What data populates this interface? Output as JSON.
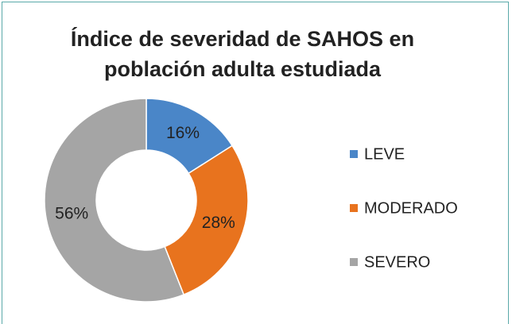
{
  "chart_data": {
    "type": "donut",
    "title": "Índice de severidad de SAHOS en población adulta estudiada",
    "categories": [
      "LEVE",
      "MODERADO",
      "SEVERO"
    ],
    "values": [
      16,
      28,
      56
    ],
    "value_labels": [
      "16%",
      "28%",
      "56%"
    ],
    "colors": [
      "#4a86c8",
      "#e8731e",
      "#a5a5a5"
    ],
    "legend": "right"
  }
}
